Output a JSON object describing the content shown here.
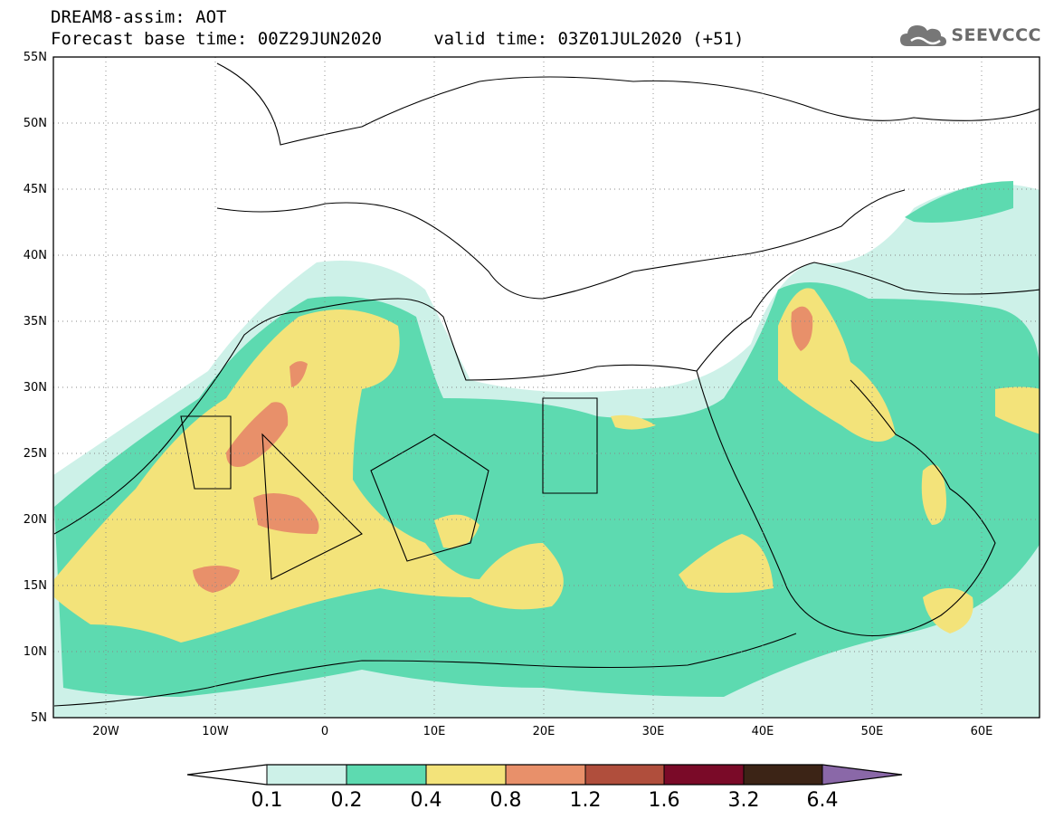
{
  "header": {
    "line1": "DREAM8-assim: AOT",
    "line2": "Forecast base time: 00Z29JUN2020     valid time: 03Z01JUL2020 (+51)"
  },
  "logo": {
    "text": "SEEVCCC",
    "icon": "cloud-icon"
  },
  "map": {
    "lat_labels": [
      "55N",
      "50N",
      "45N",
      "40N",
      "35N",
      "30N",
      "25N",
      "20N",
      "15N",
      "10N",
      "5N"
    ],
    "lon_labels": [
      "20W",
      "10W",
      "0",
      "10E",
      "20E",
      "30E",
      "40E",
      "50E",
      "60E"
    ]
  },
  "colorbar": {
    "colors": [
      "#ffffff",
      "#cdf1e8",
      "#5ddab0",
      "#f3e37a",
      "#e8906a",
      "#b04e3c",
      "#7a0a28",
      "#3c2416",
      "#8a68a8"
    ],
    "labels": [
      "0.1",
      "0.2",
      "0.4",
      "0.8",
      "1.2",
      "1.6",
      "3.2",
      "6.4"
    ]
  }
}
